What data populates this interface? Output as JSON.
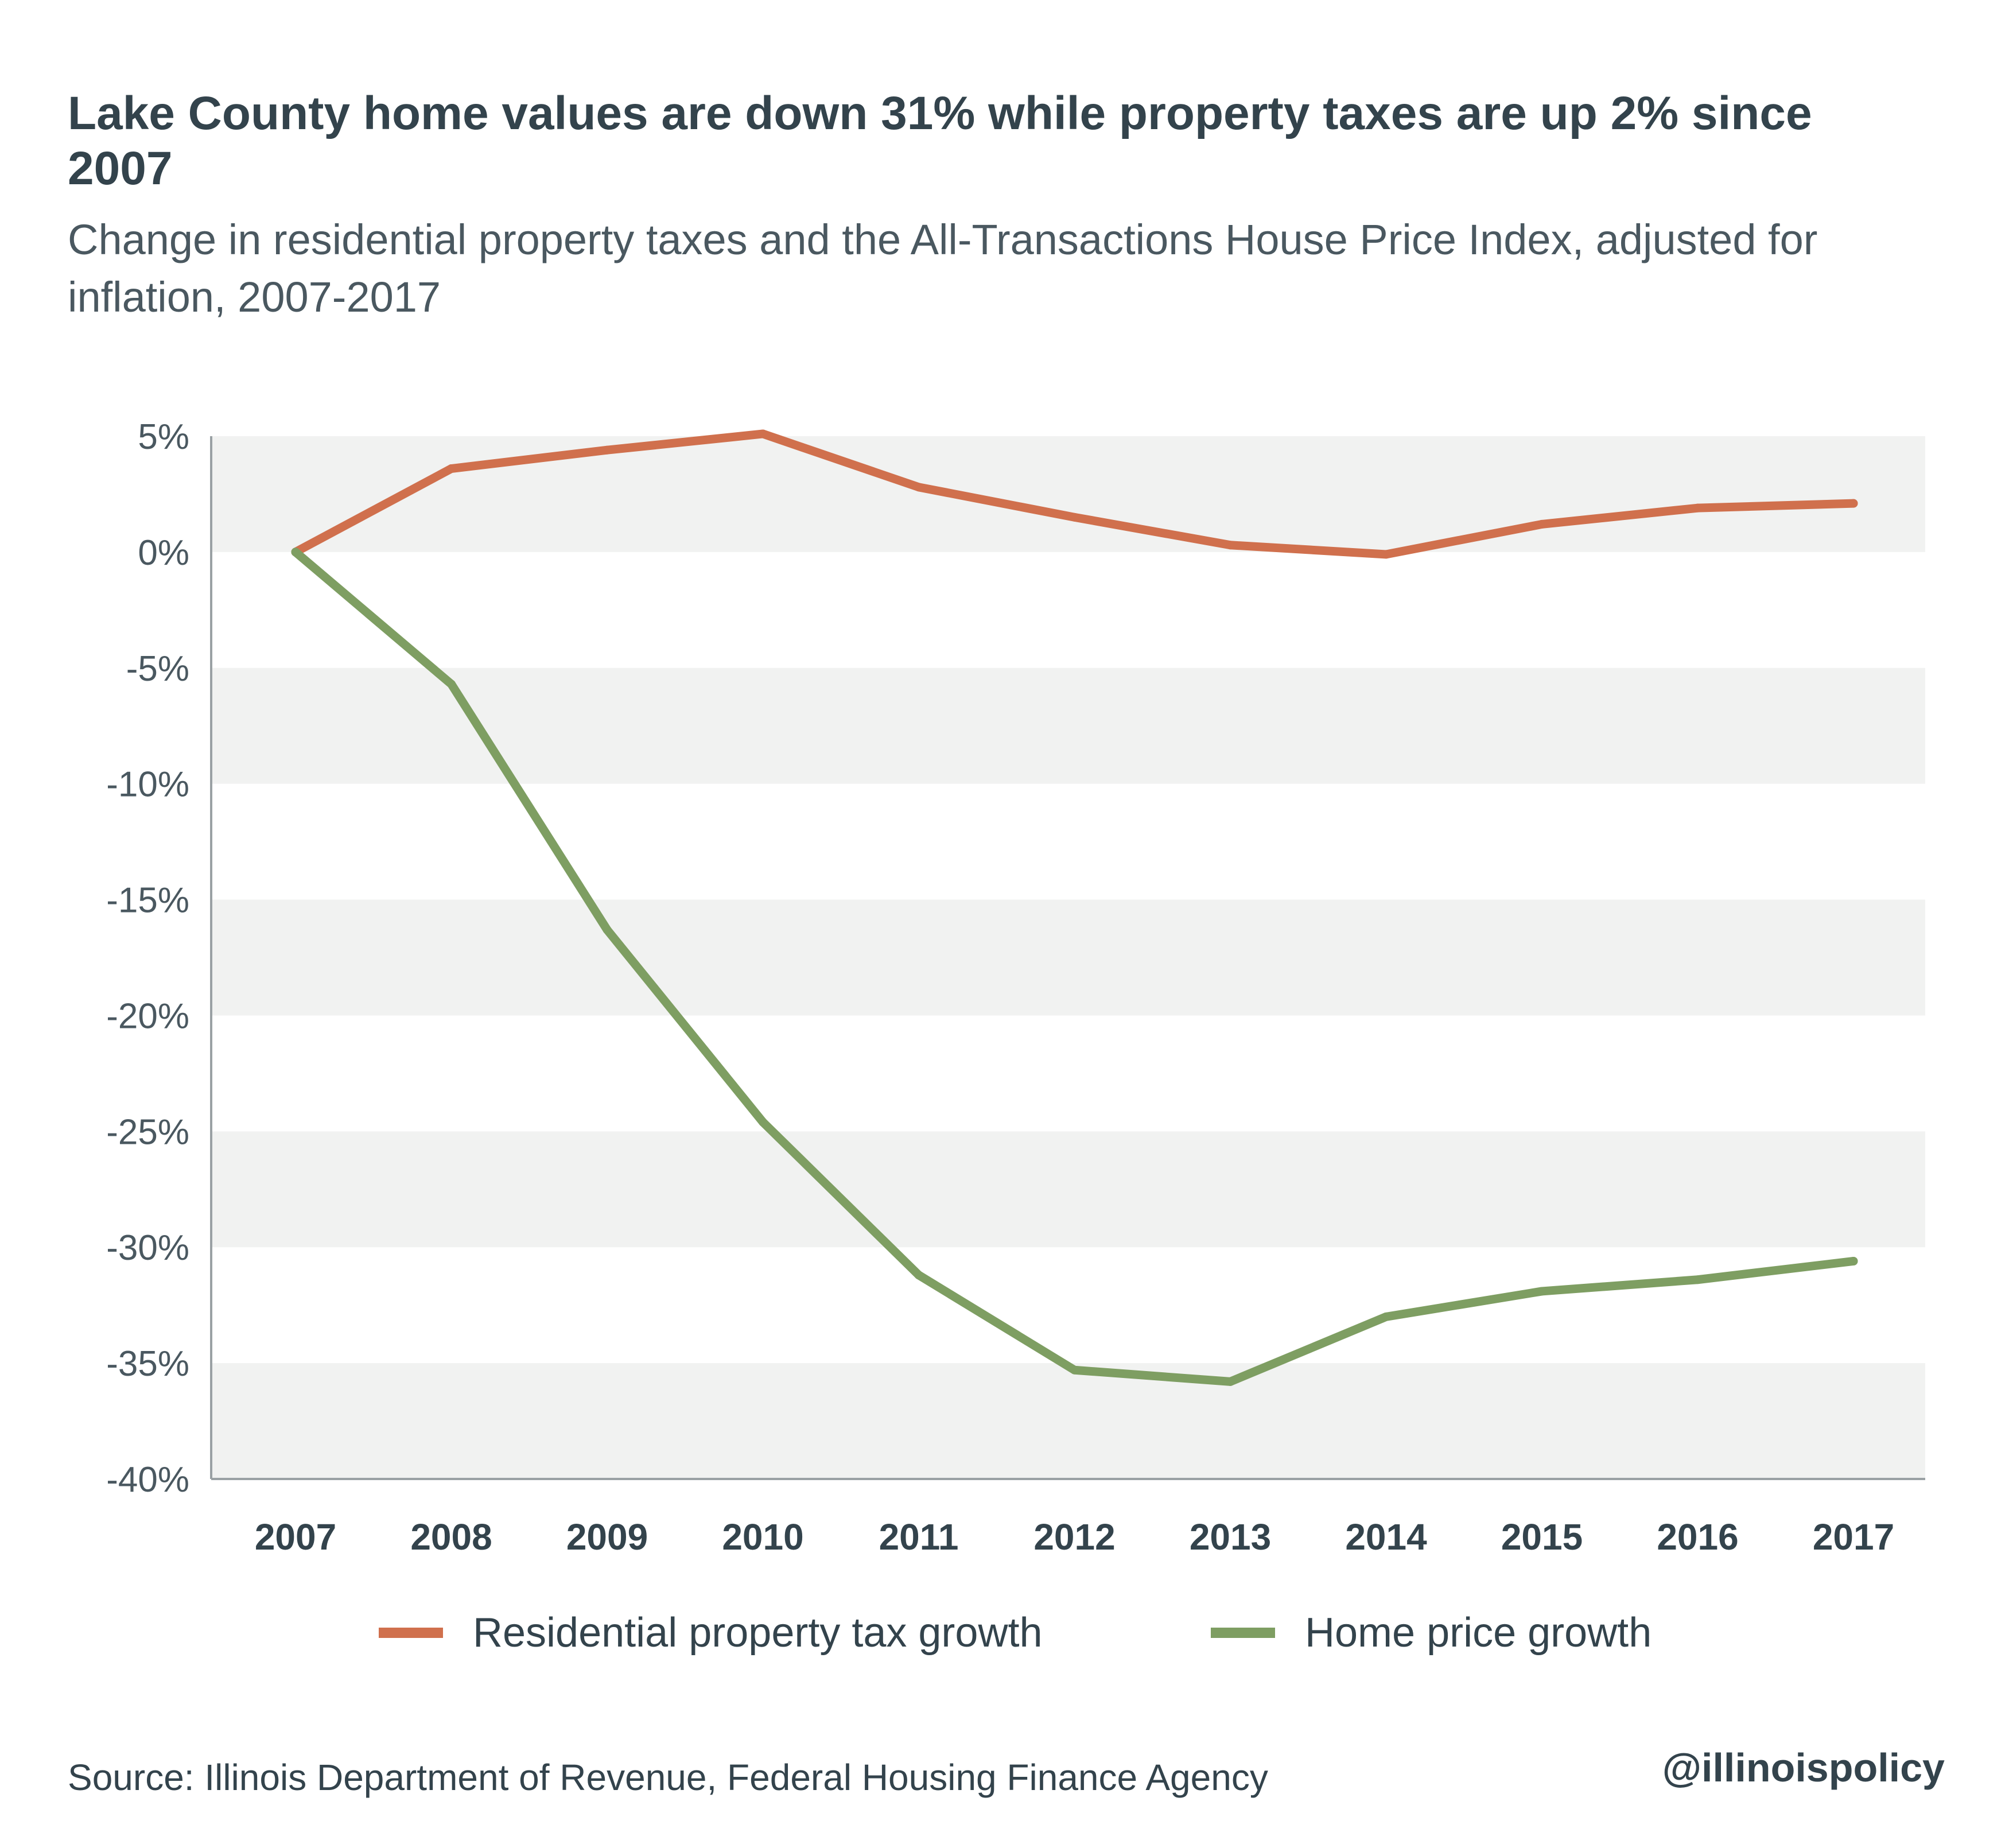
{
  "title": "Lake County home values are down 31% while property taxes are up 2% since 2007",
  "subtitle": "Change in residential property taxes and the All-Transactions House Price Index, adjusted for inflation, 2007-2017",
  "source": "Source:  Illinois Department of Revenue, Federal Housing Finance Agency",
  "handle": "@illinoispolicy",
  "colors": {
    "tax": "#d0704d",
    "home": "#7e9e62",
    "band": "#f1f2f1",
    "axis": "#9aa1a4",
    "text": "#33434c"
  },
  "chart_data": {
    "type": "line",
    "title": "Lake County home values are down 31% while property taxes are up 2% since 2007",
    "subtitle": "Change in residential property taxes and the All-Transactions House Price Index, adjusted for inflation, 2007-2017",
    "categories": [
      "2007",
      "2008",
      "2009",
      "2010",
      "2011",
      "2012",
      "2013",
      "2014",
      "2015",
      "2016",
      "2017"
    ],
    "ylim": [
      -40,
      5
    ],
    "yticks": [
      5,
      0,
      -5,
      -10,
      -15,
      -20,
      -25,
      -30,
      -35,
      -40
    ],
    "ytick_labels": [
      "5%",
      "0%",
      "-5%",
      "-10%",
      "-15%",
      "-20%",
      "-25%",
      "-30%",
      "-35%",
      "-40%"
    ],
    "grid": "alternating horizontal bands",
    "legend_position": "bottom",
    "series": [
      {
        "name": "Residential property tax growth",
        "color": "#d0704d",
        "values": [
          0,
          3.6,
          4.4,
          5.1,
          2.8,
          1.5,
          0.3,
          -0.1,
          1.2,
          1.9,
          2.1
        ]
      },
      {
        "name": "Home price growth",
        "color": "#7e9e62",
        "values": [
          0,
          -5.7,
          -16.3,
          -24.6,
          -31.2,
          -35.3,
          -35.8,
          -33.0,
          -31.9,
          -31.4,
          -30.6
        ]
      }
    ]
  }
}
